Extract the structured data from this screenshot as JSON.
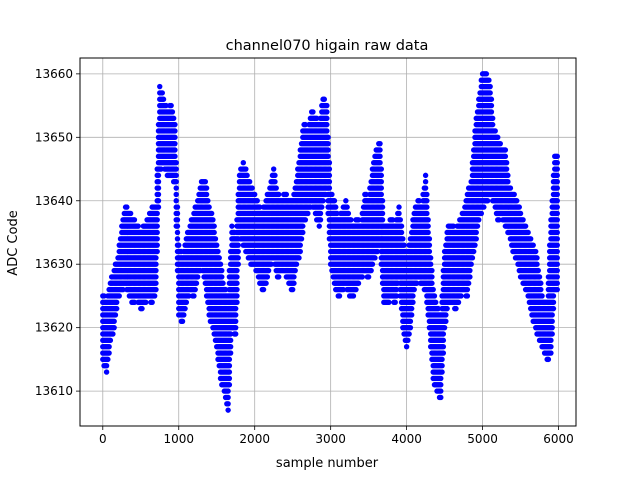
{
  "chart_data": {
    "type": "scatter",
    "title": "channel070 higain raw data",
    "xlabel": "sample number",
    "ylabel": "ADC Code",
    "xlim": [
      -300,
      6230
    ],
    "ylim": [
      13604.5,
      13662.5
    ],
    "xticks": [
      0,
      1000,
      2000,
      3000,
      4000,
      5000,
      6000
    ],
    "yticks": [
      13610,
      13620,
      13630,
      13640,
      13650,
      13660
    ],
    "grid": true,
    "marker_color": "#0000ff",
    "series": [
      {
        "x": [
          0,
          50,
          100,
          150,
          200,
          250,
          300,
          350,
          400,
          450,
          500,
          550,
          600,
          650,
          700,
          750,
          800,
          850,
          900,
          950,
          1000,
          1050,
          1100,
          1150,
          1200,
          1250,
          1300,
          1350,
          1400,
          1450,
          1500,
          1550,
          1600,
          1650,
          1700,
          1750,
          1800,
          1850,
          1900,
          1950,
          2000,
          2050,
          2100,
          2150,
          2200,
          2250,
          2300,
          2350,
          2400,
          2450,
          2500,
          2550,
          2600,
          2650,
          2700,
          2750,
          2800,
          2850,
          2900,
          2950,
          3000,
          3050,
          3100,
          3150,
          3200,
          3250,
          3300,
          3350,
          3400,
          3450,
          3500,
          3550,
          3600,
          3650,
          3700,
          3750,
          3800,
          3850,
          3900,
          3950,
          4000,
          4050,
          4100,
          4150,
          4200,
          4250,
          4300,
          4350,
          4400,
          4450,
          4500,
          4550,
          4600,
          4650,
          4700,
          4750,
          4800,
          4850,
          4900,
          4950,
          5000,
          5050,
          5100,
          5150,
          5200,
          5250,
          5300,
          5350,
          5400,
          5450,
          5500,
          5550,
          5600,
          5650,
          5700,
          5750,
          5800,
          5850,
          5900,
          5950
        ],
        "y_min": [
          13615,
          13613,
          13618,
          13620,
          13625,
          13626,
          13627,
          13625,
          13624,
          13625,
          13623,
          13624,
          13625,
          13624,
          13626,
          13645,
          13646,
          13644,
          13644,
          13643,
          13622,
          13621,
          13624,
          13626,
          13625,
          13628,
          13630,
          13627,
          13622,
          13620,
          13617,
          13612,
          13610,
          13607,
          13620,
          13619,
          13635,
          13633,
          13632,
          13630,
          13630,
          13628,
          13626,
          13627,
          13630,
          13631,
          13628,
          13629,
          13629,
          13627,
          13626,
          13630,
          13632,
          13637,
          13638,
          13640,
          13638,
          13636,
          13640,
          13642,
          13630,
          13627,
          13625,
          13626,
          13627,
          13625,
          13625,
          13627,
          13628,
          13629,
          13628,
          13630,
          13632,
          13633,
          13624,
          13624,
          13625,
          13624,
          13628,
          13620,
          13617,
          13620,
          13626,
          13628,
          13627,
          13626,
          13620,
          13612,
          13610,
          13609,
          13620,
          13624,
          13624,
          13623,
          13625,
          13626,
          13625,
          13630,
          13633,
          13637,
          13639,
          13640,
          13641,
          13640,
          13637,
          13638,
          13636,
          13635,
          13632,
          13631,
          13628,
          13627,
          13625,
          13622,
          13620,
          13618,
          13617,
          13615,
          13616,
          13626
        ],
        "y_max": [
          13625,
          13624,
          13627,
          13629,
          13631,
          13636,
          13639,
          13638,
          13637,
          13636,
          13635,
          13636,
          13637,
          13639,
          13639,
          13658,
          13656,
          13654,
          13655,
          13652,
          13633,
          13631,
          13634,
          13636,
          13638,
          13640,
          13643,
          13643,
          13639,
          13637,
          13633,
          13630,
          13626,
          13625,
          13636,
          13634,
          13644,
          13646,
          13644,
          13642,
          13641,
          13639,
          13638,
          13640,
          13642,
          13645,
          13641,
          13640,
          13641,
          13640,
          13640,
          13643,
          13648,
          13652,
          13651,
          13654,
          13653,
          13652,
          13656,
          13655,
          13641,
          13640,
          13637,
          13638,
          13640,
          13637,
          13636,
          13637,
          13636,
          13641,
          13640,
          13645,
          13648,
          13649,
          13636,
          13636,
          13637,
          13636,
          13639,
          13634,
          13631,
          13634,
          13638,
          13640,
          13639,
          13644,
          13634,
          13626,
          13623,
          13622,
          13632,
          13636,
          13636,
          13635,
          13637,
          13638,
          13641,
          13643,
          13651,
          13656,
          13660,
          13660,
          13658,
          13651,
          13650,
          13648,
          13648,
          13642,
          13641,
          13640,
          13638,
          13636,
          13635,
          13633,
          13632,
          13628,
          13624,
          13624,
          13637,
          13647
        ]
      }
    ]
  }
}
